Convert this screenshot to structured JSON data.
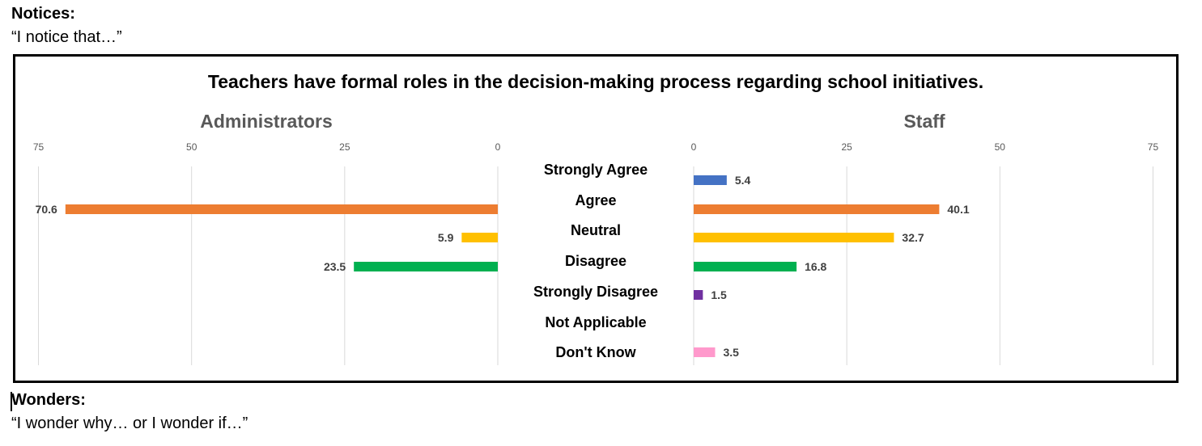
{
  "notices": {
    "heading": "Notices:",
    "prompt": "“I notice that…”"
  },
  "wonders": {
    "heading": "Wonders:",
    "prompt": "“I wonder why… or I wonder if…”"
  },
  "chart_data": {
    "type": "bar",
    "orientation": "horizontal-butterfly",
    "title": "Teachers have formal roles in the decision-making process regarding school initiatives.",
    "categories": [
      "Strongly Agree",
      "Agree",
      "Neutral",
      "Disagree",
      "Strongly Disagree",
      "Not Applicable",
      "Don't Know"
    ],
    "colors": [
      "#4472c4",
      "#ed7d31",
      "#ffc000",
      "#00b050",
      "#7030a0",
      "#7f7f7f",
      "#ff99cc"
    ],
    "xlim": [
      0,
      75
    ],
    "ticks": [
      0,
      25,
      50,
      75
    ],
    "grid": true,
    "series": [
      {
        "name": "Administrators",
        "side": "left",
        "values": [
          null,
          70.6,
          5.9,
          23.5,
          null,
          null,
          null
        ]
      },
      {
        "name": "Staff",
        "side": "right",
        "values": [
          5.4,
          40.1,
          32.7,
          16.8,
          1.5,
          null,
          3.5
        ]
      }
    ]
  }
}
